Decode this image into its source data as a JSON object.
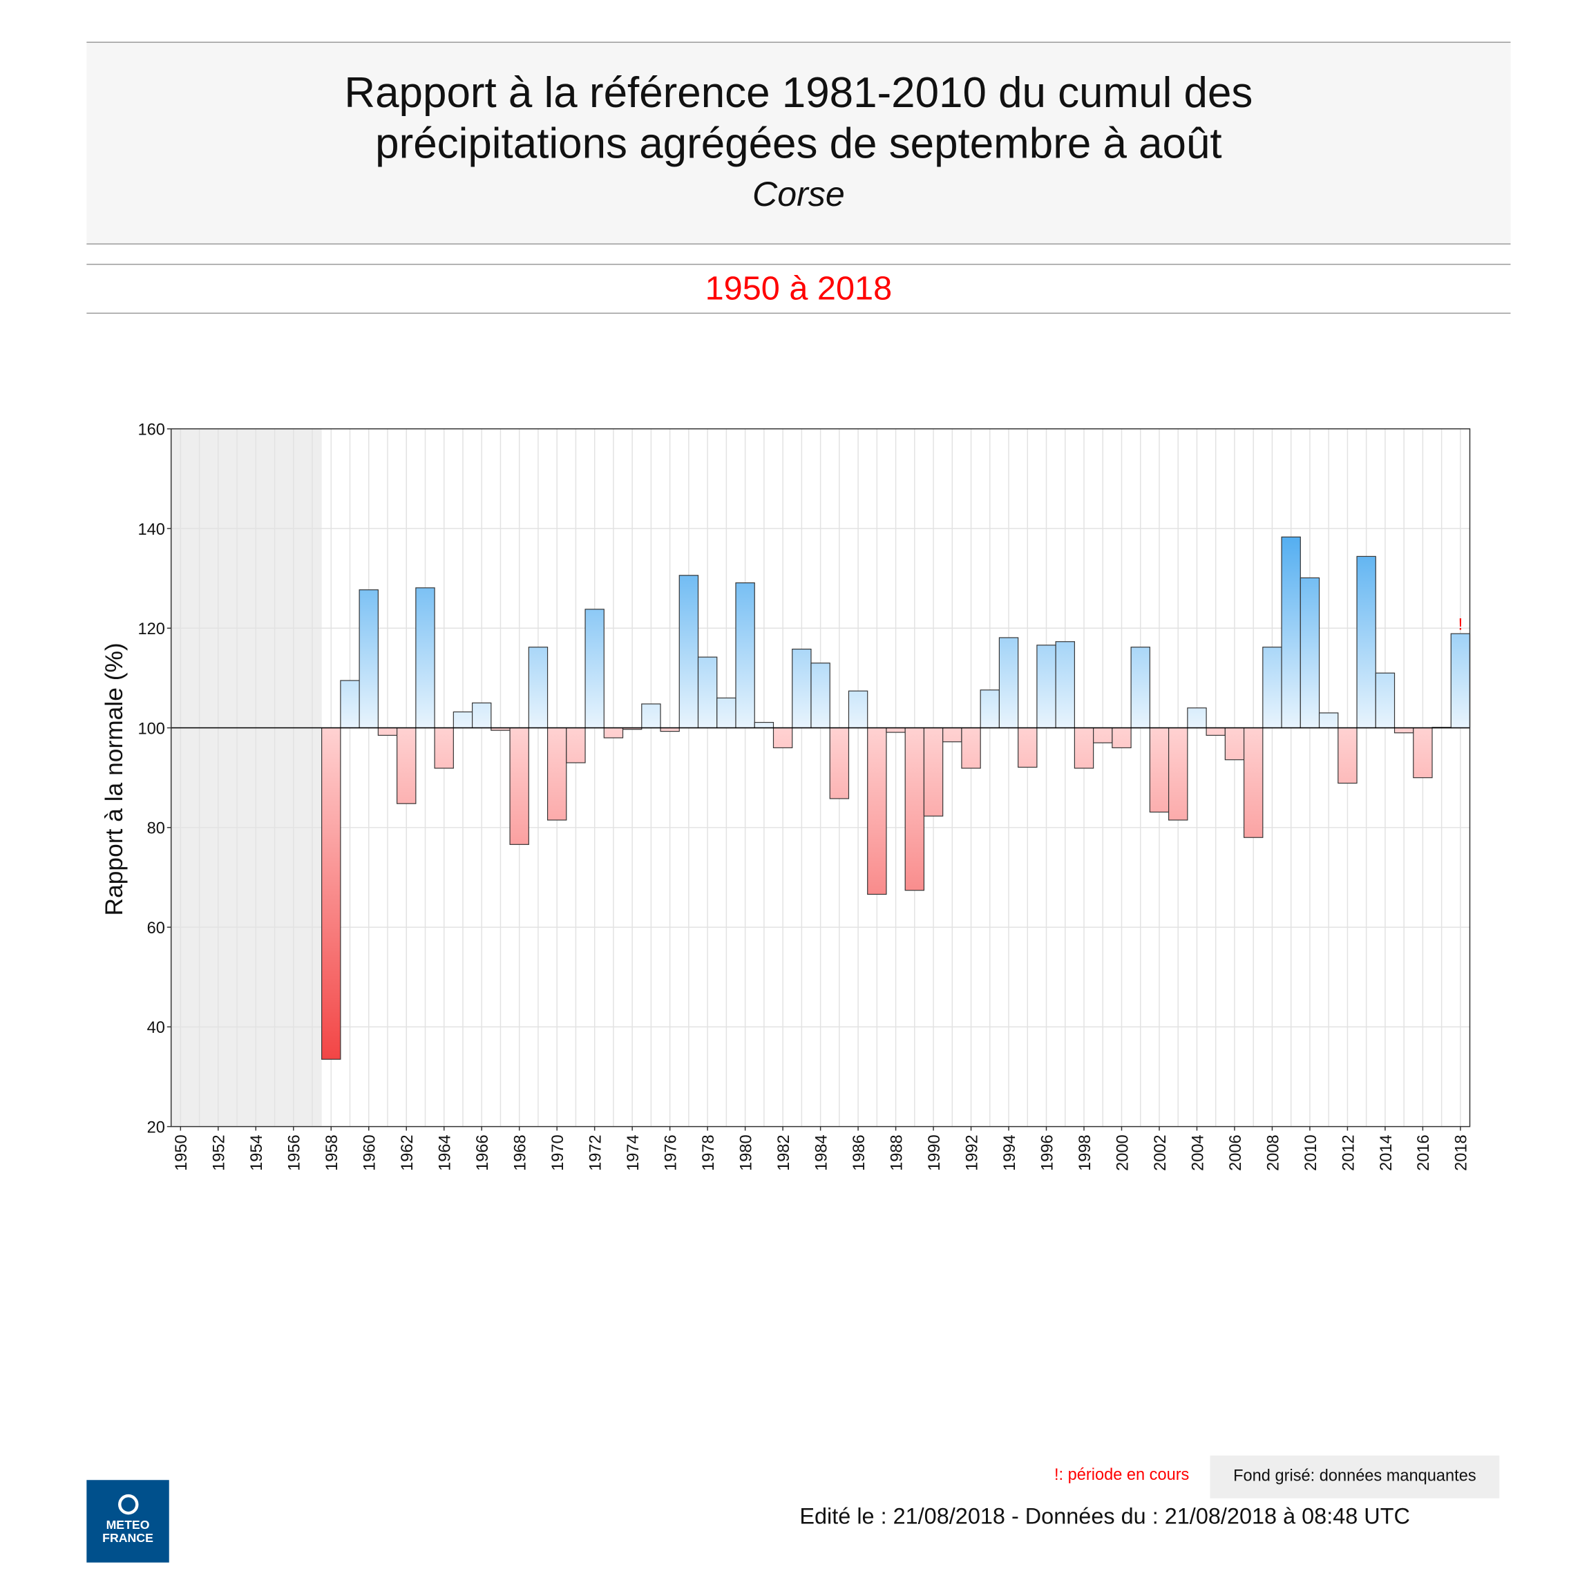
{
  "header": {
    "title": "Rapport à la référence 1981-2010 du cumul des précipitations agrégées de septembre à août",
    "region": "Corse",
    "period": "1950 à 2018"
  },
  "legend": {
    "current_period": "!: période en cours",
    "missing": "Fond grisé: données manquantes"
  },
  "footer": {
    "edited": "Edité le : 21/08/2018 - Données du : 21/08/2018 à 08:48 UTC"
  },
  "logo": {
    "line1": "METEO",
    "line2": "FRANCE"
  },
  "colors": {
    "positive": "#4dabf0",
    "positive_light": "#e8f4fd",
    "negative": "#f24141",
    "negative_light": "#ffd2d2",
    "missing_bg": "#eeeeee"
  },
  "chart_data": {
    "type": "bar",
    "title": "",
    "xlabel": "",
    "ylabel": "Rapport à la normale (%)",
    "ylim": [
      20,
      160
    ],
    "yticks": [
      20,
      40,
      60,
      80,
      100,
      120,
      140,
      160
    ],
    "baseline": 100,
    "grid": true,
    "missing_years": [
      1950,
      1951,
      1952,
      1953,
      1954,
      1955,
      1956,
      1957
    ],
    "current_period_marker": {
      "year": 2018,
      "label": "!"
    },
    "categories": [
      1950,
      1951,
      1952,
      1953,
      1954,
      1955,
      1956,
      1957,
      1958,
      1959,
      1960,
      1961,
      1962,
      1963,
      1964,
      1965,
      1966,
      1967,
      1968,
      1969,
      1970,
      1971,
      1972,
      1973,
      1974,
      1975,
      1976,
      1977,
      1978,
      1979,
      1980,
      1981,
      1982,
      1983,
      1984,
      1985,
      1986,
      1987,
      1988,
      1989,
      1990,
      1991,
      1992,
      1993,
      1994,
      1995,
      1996,
      1997,
      1998,
      1999,
      2000,
      2001,
      2002,
      2003,
      2004,
      2005,
      2006,
      2007,
      2008,
      2009,
      2010,
      2011,
      2012,
      2013,
      2014,
      2015,
      2016,
      2017,
      2018
    ],
    "values": [
      null,
      null,
      null,
      null,
      null,
      null,
      null,
      null,
      33.5,
      109.5,
      127.7,
      98.5,
      84.8,
      128.1,
      91.9,
      103.2,
      105,
      99.5,
      76.6,
      116.2,
      81.5,
      93,
      123.8,
      98,
      99.7,
      104.8,
      99.3,
      130.6,
      114.2,
      106,
      129.1,
      101.1,
      96,
      115.8,
      113,
      85.8,
      107.4,
      66.6,
      99.1,
      67.4,
      82.3,
      97.2,
      91.9,
      107.6,
      118.1,
      92.1,
      116.6,
      117.3,
      91.9,
      97,
      96,
      116.2,
      83.1,
      81.5,
      104,
      98.5,
      93.6,
      78,
      116.2,
      138.3,
      130.1,
      103,
      88.9,
      134.4,
      111,
      99,
      90,
      100.1,
      118.9
    ]
  }
}
